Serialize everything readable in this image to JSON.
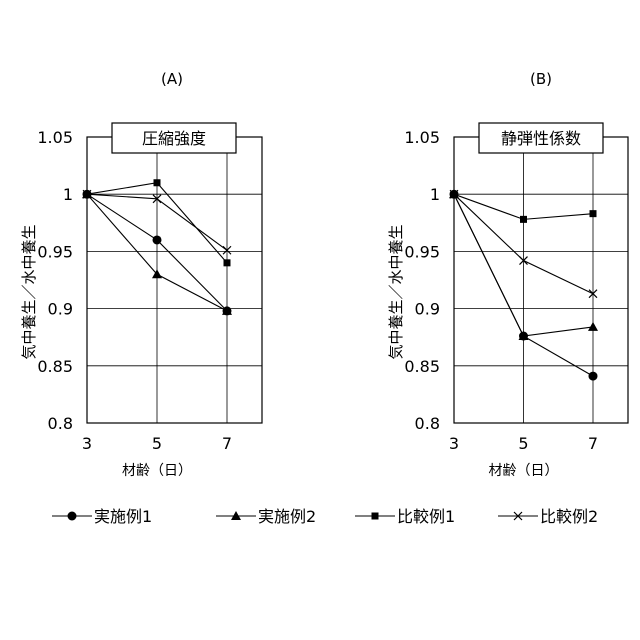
{
  "chart_data": [
    {
      "type": "line",
      "panel_label": "(A)",
      "title": "圧縮強度",
      "ylabel": "気中養生／水中養生",
      "xlabel": "材齢（日）",
      "x": [
        3,
        5,
        7
      ],
      "xticks": [
        "3",
        "5",
        "7"
      ],
      "ylim": [
        0.8,
        1.05
      ],
      "yticks": [
        "0.8",
        "0.85",
        "0.9",
        "0.95",
        "1",
        "1.05"
      ],
      "grid": true,
      "series": [
        {
          "name": "実施例1",
          "marker": "circle",
          "values": [
            1.0,
            0.96,
            0.898
          ]
        },
        {
          "name": "実施例2",
          "marker": "triangle",
          "values": [
            1.0,
            0.93,
            0.898
          ]
        },
        {
          "name": "比較例1",
          "marker": "square",
          "values": [
            1.0,
            1.01,
            0.94
          ]
        },
        {
          "name": "比較例2",
          "marker": "cross",
          "values": [
            1.0,
            0.996,
            0.951
          ]
        }
      ]
    },
    {
      "type": "line",
      "panel_label": "(B)",
      "title": "静弾性係数",
      "ylabel": "気中養生／水中養生",
      "xlabel": "材齢（日）",
      "x": [
        3,
        5,
        7
      ],
      "xticks": [
        "3",
        "5",
        "7"
      ],
      "ylim": [
        0.8,
        1.05
      ],
      "yticks": [
        "0.8",
        "0.85",
        "0.9",
        "0.95",
        "1",
        "1.05"
      ],
      "grid": true,
      "series": [
        {
          "name": "実施例1",
          "marker": "circle",
          "values": [
            1.0,
            0.876,
            0.841
          ]
        },
        {
          "name": "実施例2",
          "marker": "triangle",
          "values": [
            1.0,
            0.876,
            0.884
          ]
        },
        {
          "name": "比較例1",
          "marker": "square",
          "values": [
            1.0,
            0.978,
            0.983
          ]
        },
        {
          "name": "比較例2",
          "marker": "cross",
          "values": [
            1.0,
            0.942,
            0.913
          ]
        }
      ]
    }
  ],
  "legend": {
    "placement": "bottom",
    "items": [
      {
        "label": "実施例1",
        "marker": "circle"
      },
      {
        "label": "実施例2",
        "marker": "triangle"
      },
      {
        "label": "比較例1",
        "marker": "square"
      },
      {
        "label": "比較例2",
        "marker": "cross"
      }
    ]
  },
  "colors": {
    "line": "#000000",
    "background": "#ffffff"
  }
}
